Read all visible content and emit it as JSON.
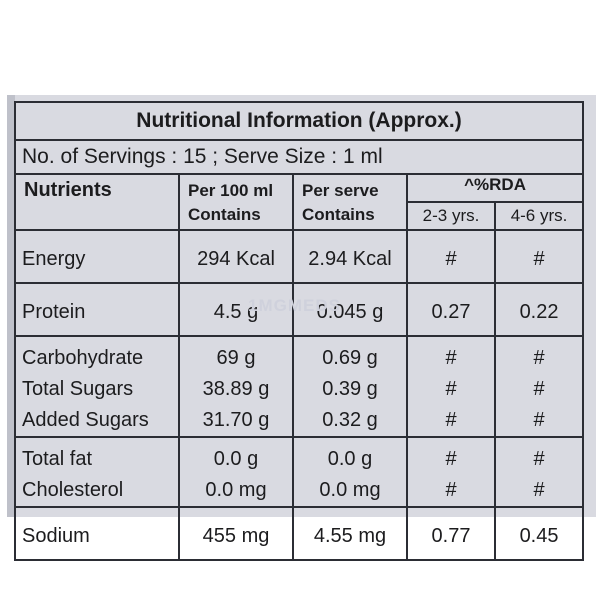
{
  "title": "Nutritional Information (Approx.)",
  "servings_line": "No. of Servings : 15 ; Serve Size : 1 ml",
  "headers": {
    "nutrients": "Nutrients",
    "per100_line1": "Per 100 ml",
    "per100_line2": "Contains",
    "perserve_line1": "Per serve",
    "perserve_line2": "Contains",
    "rda": "^%RDA",
    "age1": "2-3 yrs.",
    "age2": "4-6 yrs."
  },
  "groups": [
    {
      "rows": [
        {
          "name": "Energy",
          "per100": "294 Kcal",
          "perserve": "2.94 Kcal",
          "rda1": "#",
          "rda2": "#"
        }
      ]
    },
    {
      "rows": [
        {
          "name": "Protein",
          "per100": "4.5 g",
          "perserve": "0.045 g",
          "rda1": "0.27",
          "rda2": "0.22"
        }
      ]
    },
    {
      "rows": [
        {
          "name": "Carbohydrate",
          "per100": "69 g",
          "perserve": "0.69 g",
          "rda1": "#",
          "rda2": "#"
        },
        {
          "name": "Total Sugars",
          "per100": "38.89 g",
          "perserve": "0.39 g",
          "rda1": "#",
          "rda2": "#"
        },
        {
          "name": "Added Sugars",
          "per100": "31.70 g",
          "perserve": "0.32 g",
          "rda1": "#",
          "rda2": "#"
        }
      ]
    },
    {
      "rows": [
        {
          "name": "Total fat",
          "per100": "0.0 g",
          "perserve": "0.0 g",
          "rda1": "#",
          "rda2": "#"
        },
        {
          "name": "Cholesterol",
          "per100": "0.0 mg",
          "perserve": "0.0 mg",
          "rda1": "#",
          "rda2": "#"
        }
      ]
    },
    {
      "rows": [
        {
          "name": "Sodium",
          "per100": "455 mg",
          "perserve": "4.55 mg",
          "rda1": "0.77",
          "rda2": "0.45"
        }
      ]
    }
  ],
  "watermark": "1MGMEDS"
}
